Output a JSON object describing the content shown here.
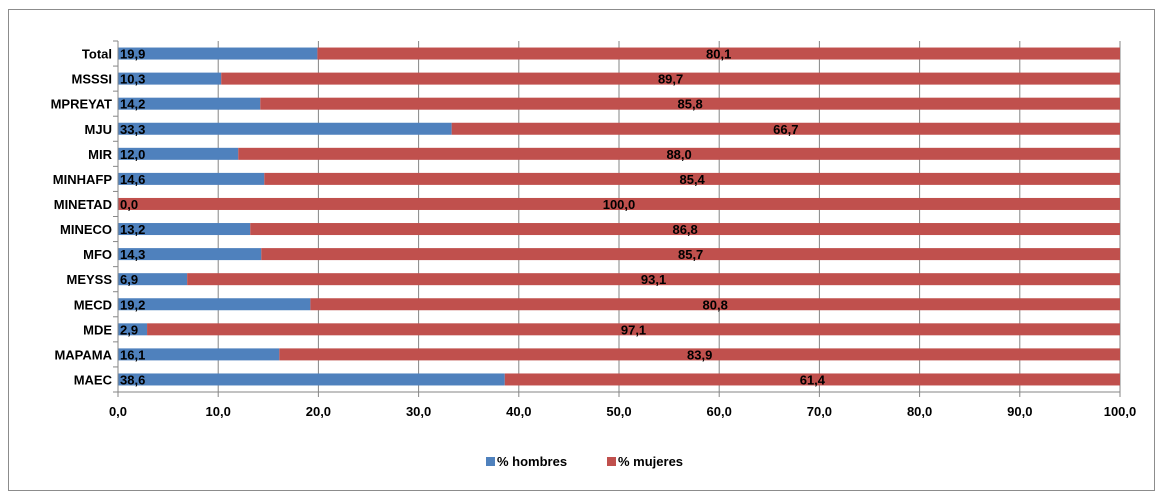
{
  "chart_data": {
    "type": "bar",
    "orientation": "horizontal",
    "stacked": true,
    "categories": [
      "Total",
      "MSSSI",
      "MPREYAT",
      "MJU",
      "MIR",
      "MINHAFP",
      "MINETAD",
      "MINECO",
      "MFO",
      "MEYSS",
      "MECD",
      "MDE",
      "MAPAMA",
      "MAEC"
    ],
    "series": [
      {
        "name": "% hombres",
        "color": "#4f81bd",
        "values": [
          19.9,
          10.3,
          14.2,
          33.3,
          12.0,
          14.6,
          0.0,
          13.2,
          14.3,
          6.9,
          19.2,
          2.9,
          16.1,
          38.6
        ],
        "labels": [
          "19,9",
          "10,3",
          "14,2",
          "33,3",
          "12,0",
          "14,6",
          "0,0",
          "13,2",
          "14,3",
          "6,9",
          "19,2",
          "2,9",
          "16,1",
          "38,6"
        ]
      },
      {
        "name": "% mujeres",
        "color": "#c0504d",
        "values": [
          80.1,
          89.7,
          85.8,
          66.7,
          88.0,
          85.4,
          100.0,
          86.8,
          85.7,
          93.1,
          80.8,
          97.1,
          83.9,
          61.4
        ],
        "labels": [
          "80,1",
          "89,7",
          "85,8",
          "66,7",
          "88,0",
          "85,4",
          "100,0",
          "86,8",
          "85,7",
          "93,1",
          "80,8",
          "97,1",
          "83,9",
          "61,4"
        ]
      }
    ],
    "xlim": [
      0,
      100
    ],
    "xticks": [
      0,
      10,
      20,
      30,
      40,
      50,
      60,
      70,
      80,
      90,
      100
    ],
    "xtick_labels": [
      "0,0",
      "10,0",
      "20,0",
      "30,0",
      "40,0",
      "50,0",
      "60,0",
      "70,0",
      "80,0",
      "90,0",
      "100,0"
    ],
    "grid": true,
    "legend_position": "bottom",
    "title": "",
    "xlabel": "",
    "ylabel": ""
  }
}
